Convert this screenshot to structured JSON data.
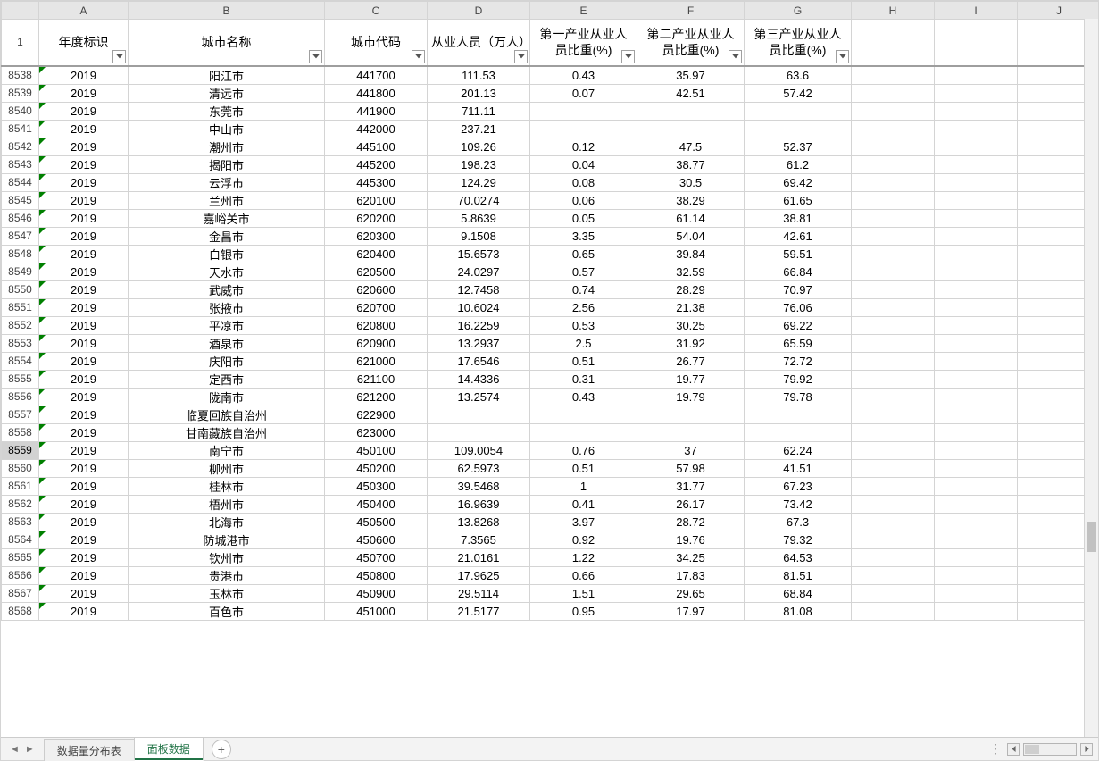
{
  "columns": {
    "letters": [
      "A",
      "B",
      "C",
      "D",
      "E",
      "F",
      "G",
      "H",
      "I",
      "J"
    ],
    "headers": {
      "A": "年度标识",
      "B": "城市名称",
      "C": "城市代码",
      "D": "从业人员（万人）",
      "E": "第一产业从业人员比重(%)",
      "F": "第二产业从业人员比重(%)",
      "G": "第三产业从业人员比重(%)"
    },
    "header_row_number": "1"
  },
  "selected_row": "8559",
  "rows": [
    {
      "n": "8538",
      "A": "2019",
      "B": "阳江市",
      "C": "441700",
      "D": "111.53",
      "E": "0.43",
      "F": "35.97",
      "G": "63.6"
    },
    {
      "n": "8539",
      "A": "2019",
      "B": "清远市",
      "C": "441800",
      "D": "201.13",
      "E": "0.07",
      "F": "42.51",
      "G": "57.42"
    },
    {
      "n": "8540",
      "A": "2019",
      "B": "东莞市",
      "C": "441900",
      "D": "711.11",
      "E": "",
      "F": "",
      "G": ""
    },
    {
      "n": "8541",
      "A": "2019",
      "B": "中山市",
      "C": "442000",
      "D": "237.21",
      "E": "",
      "F": "",
      "G": ""
    },
    {
      "n": "8542",
      "A": "2019",
      "B": "潮州市",
      "C": "445100",
      "D": "109.26",
      "E": "0.12",
      "F": "47.5",
      "G": "52.37"
    },
    {
      "n": "8543",
      "A": "2019",
      "B": "揭阳市",
      "C": "445200",
      "D": "198.23",
      "E": "0.04",
      "F": "38.77",
      "G": "61.2"
    },
    {
      "n": "8544",
      "A": "2019",
      "B": "云浮市",
      "C": "445300",
      "D": "124.29",
      "E": "0.08",
      "F": "30.5",
      "G": "69.42"
    },
    {
      "n": "8545",
      "A": "2019",
      "B": "兰州市",
      "C": "620100",
      "D": "70.0274",
      "E": "0.06",
      "F": "38.29",
      "G": "61.65"
    },
    {
      "n": "8546",
      "A": "2019",
      "B": "嘉峪关市",
      "C": "620200",
      "D": "5.8639",
      "E": "0.05",
      "F": "61.14",
      "G": "38.81"
    },
    {
      "n": "8547",
      "A": "2019",
      "B": "金昌市",
      "C": "620300",
      "D": "9.1508",
      "E": "3.35",
      "F": "54.04",
      "G": "42.61"
    },
    {
      "n": "8548",
      "A": "2019",
      "B": "白银市",
      "C": "620400",
      "D": "15.6573",
      "E": "0.65",
      "F": "39.84",
      "G": "59.51"
    },
    {
      "n": "8549",
      "A": "2019",
      "B": "天水市",
      "C": "620500",
      "D": "24.0297",
      "E": "0.57",
      "F": "32.59",
      "G": "66.84"
    },
    {
      "n": "8550",
      "A": "2019",
      "B": "武威市",
      "C": "620600",
      "D": "12.7458",
      "E": "0.74",
      "F": "28.29",
      "G": "70.97"
    },
    {
      "n": "8551",
      "A": "2019",
      "B": "张掖市",
      "C": "620700",
      "D": "10.6024",
      "E": "2.56",
      "F": "21.38",
      "G": "76.06"
    },
    {
      "n": "8552",
      "A": "2019",
      "B": "平凉市",
      "C": "620800",
      "D": "16.2259",
      "E": "0.53",
      "F": "30.25",
      "G": "69.22"
    },
    {
      "n": "8553",
      "A": "2019",
      "B": "酒泉市",
      "C": "620900",
      "D": "13.2937",
      "E": "2.5",
      "F": "31.92",
      "G": "65.59"
    },
    {
      "n": "8554",
      "A": "2019",
      "B": "庆阳市",
      "C": "621000",
      "D": "17.6546",
      "E": "0.51",
      "F": "26.77",
      "G": "72.72"
    },
    {
      "n": "8555",
      "A": "2019",
      "B": "定西市",
      "C": "621100",
      "D": "14.4336",
      "E": "0.31",
      "F": "19.77",
      "G": "79.92"
    },
    {
      "n": "8556",
      "A": "2019",
      "B": "陇南市",
      "C": "621200",
      "D": "13.2574",
      "E": "0.43",
      "F": "19.79",
      "G": "79.78"
    },
    {
      "n": "8557",
      "A": "2019",
      "B": "临夏回族自治州",
      "C": "622900",
      "D": "",
      "E": "",
      "F": "",
      "G": ""
    },
    {
      "n": "8558",
      "A": "2019",
      "B": "甘南藏族自治州",
      "C": "623000",
      "D": "",
      "E": "",
      "F": "",
      "G": ""
    },
    {
      "n": "8559",
      "A": "2019",
      "B": "南宁市",
      "C": "450100",
      "D": "109.0054",
      "E": "0.76",
      "F": "37",
      "G": "62.24"
    },
    {
      "n": "8560",
      "A": "2019",
      "B": "柳州市",
      "C": "450200",
      "D": "62.5973",
      "E": "0.51",
      "F": "57.98",
      "G": "41.51"
    },
    {
      "n": "8561",
      "A": "2019",
      "B": "桂林市",
      "C": "450300",
      "D": "39.5468",
      "E": "1",
      "F": "31.77",
      "G": "67.23"
    },
    {
      "n": "8562",
      "A": "2019",
      "B": "梧州市",
      "C": "450400",
      "D": "16.9639",
      "E": "0.41",
      "F": "26.17",
      "G": "73.42"
    },
    {
      "n": "8563",
      "A": "2019",
      "B": "北海市",
      "C": "450500",
      "D": "13.8268",
      "E": "3.97",
      "F": "28.72",
      "G": "67.3"
    },
    {
      "n": "8564",
      "A": "2019",
      "B": "防城港市",
      "C": "450600",
      "D": "7.3565",
      "E": "0.92",
      "F": "19.76",
      "G": "79.32"
    },
    {
      "n": "8565",
      "A": "2019",
      "B": "钦州市",
      "C": "450700",
      "D": "21.0161",
      "E": "1.22",
      "F": "34.25",
      "G": "64.53"
    },
    {
      "n": "8566",
      "A": "2019",
      "B": "贵港市",
      "C": "450800",
      "D": "17.9625",
      "E": "0.66",
      "F": "17.83",
      "G": "81.51"
    },
    {
      "n": "8567",
      "A": "2019",
      "B": "玉林市",
      "C": "450900",
      "D": "29.5114",
      "E": "1.51",
      "F": "29.65",
      "G": "68.84"
    },
    {
      "n": "8568",
      "A": "2019",
      "B": "百色市",
      "C": "451000",
      "D": "21.5177",
      "E": "0.95",
      "F": "17.97",
      "G": "81.08"
    }
  ],
  "tabs": {
    "items": [
      {
        "label": "数据量分布表",
        "active": false
      },
      {
        "label": "面板数据",
        "active": true
      }
    ],
    "add_label": "+"
  },
  "style": {
    "gridline_color": "#d4d4d4",
    "header_bg": "#e6e6e6",
    "triangle_color": "#008000",
    "active_tab_color": "#217346",
    "font_family": "Microsoft YaHei",
    "cell_font_size": 13,
    "header_font_size": 14
  }
}
